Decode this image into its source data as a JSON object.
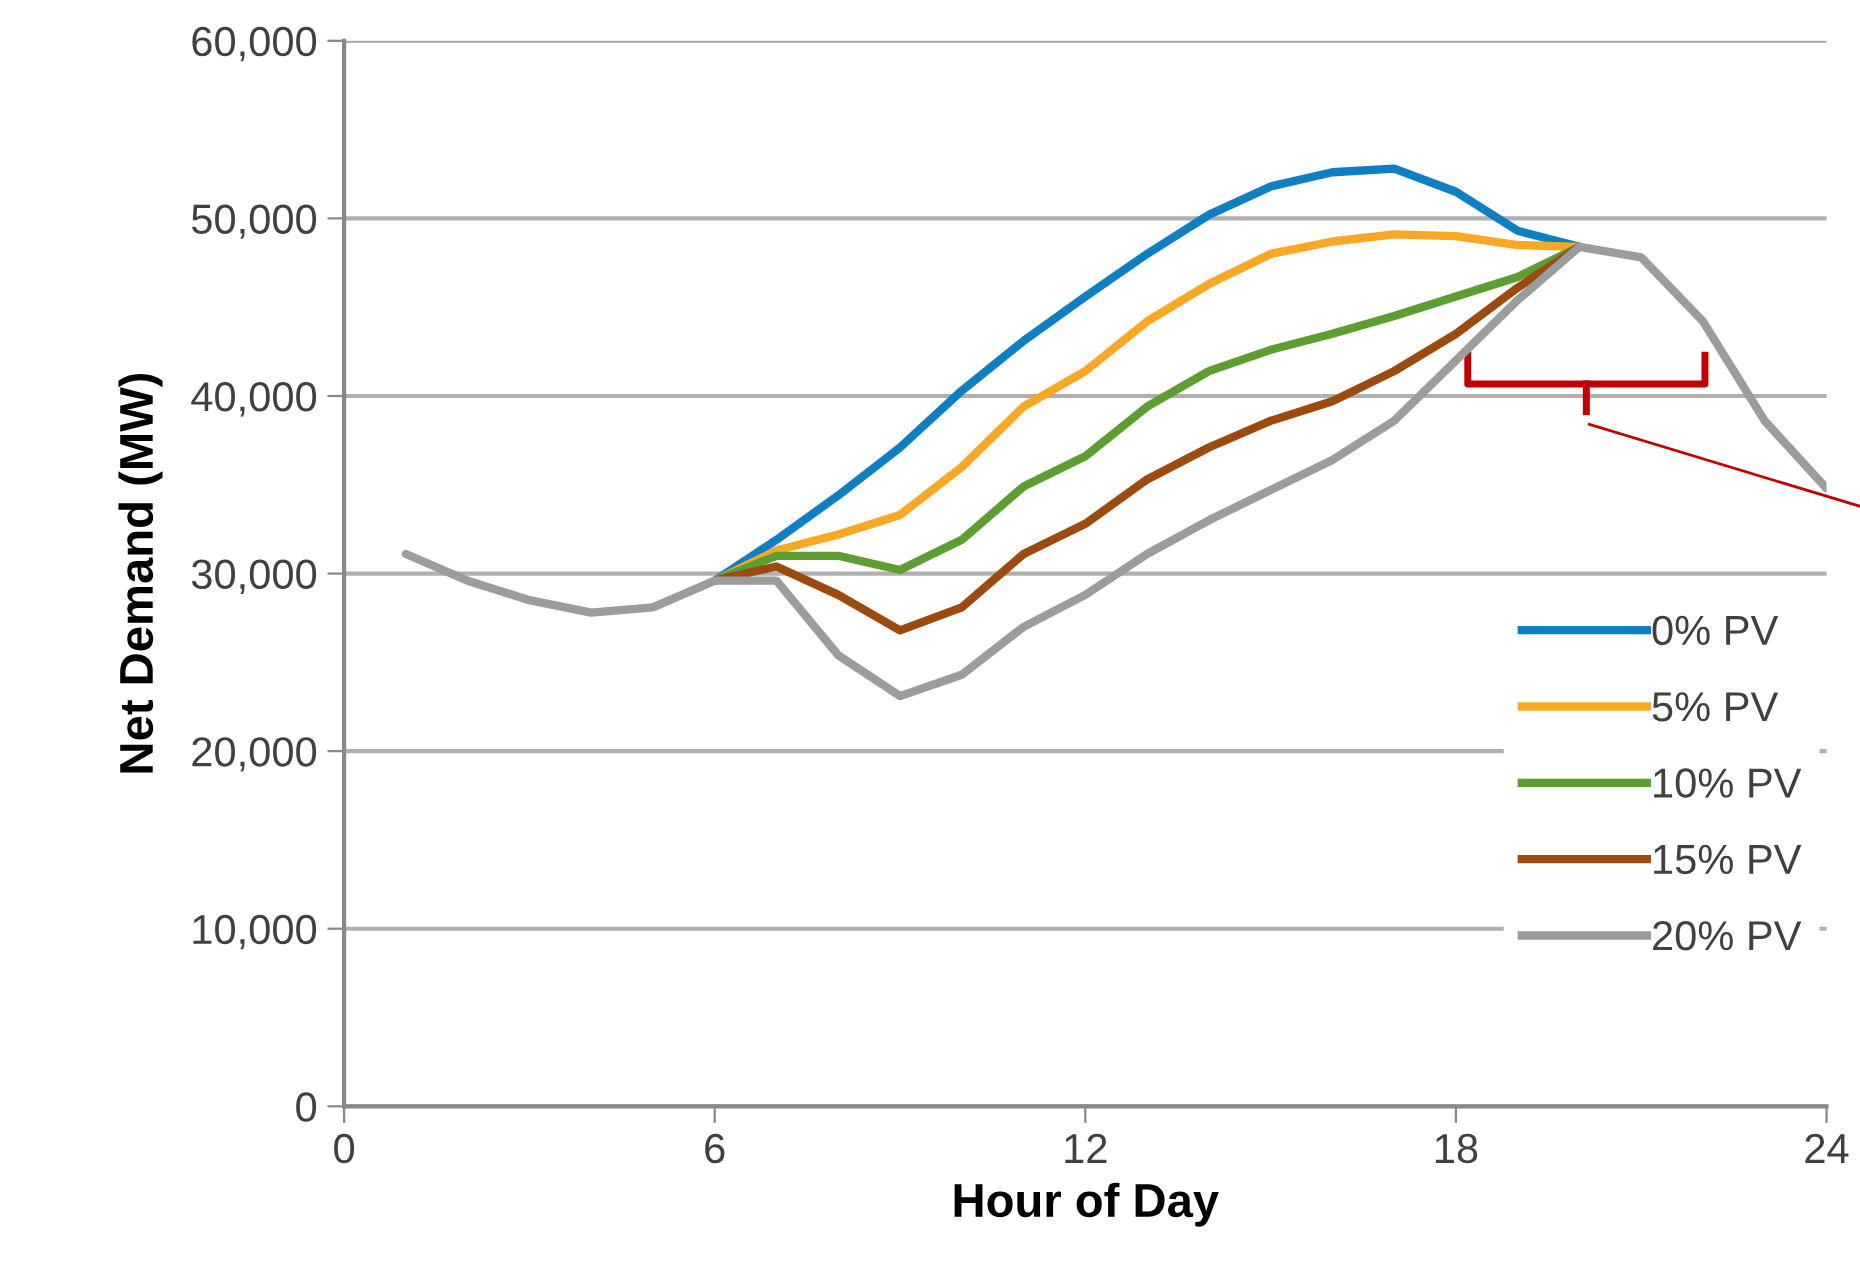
{
  "chart_data": {
    "type": "line",
    "xlabel": "Hour of Day",
    "ylabel": "Net Demand (MW)",
    "x": [
      1,
      2,
      3,
      4,
      5,
      6,
      7,
      8,
      9,
      10,
      11,
      12,
      13,
      14,
      15,
      16,
      17,
      18,
      19,
      20,
      21,
      22,
      23,
      24
    ],
    "series": [
      {
        "name": "0% PV",
        "color": "#0f7fc4",
        "values": [
          null,
          null,
          null,
          null,
          null,
          29600,
          31900,
          34400,
          37100,
          40300,
          43100,
          45600,
          48000,
          50200,
          51800,
          52600,
          52800,
          51500,
          49300,
          48400,
          null,
          null,
          null,
          null
        ]
      },
      {
        "name": "5% PV",
        "color": "#f9a825",
        "values": [
          null,
          null,
          null,
          null,
          null,
          29600,
          31300,
          32200,
          33300,
          36000,
          39400,
          41400,
          44200,
          46300,
          48000,
          48700,
          49100,
          49000,
          48500,
          48400,
          null,
          null,
          null,
          null
        ]
      },
      {
        "name": "10% PV",
        "color": "#5c9e31",
        "values": [
          null,
          null,
          null,
          null,
          null,
          29600,
          31000,
          31000,
          30200,
          31900,
          34900,
          36600,
          39400,
          41400,
          42600,
          43500,
          44500,
          45600,
          46700,
          48400,
          null,
          null,
          null,
          null
        ]
      },
      {
        "name": "15% PV",
        "color": "#9c4a0e",
        "values": [
          null,
          null,
          null,
          null,
          null,
          29600,
          30400,
          28800,
          26800,
          28100,
          31100,
          32800,
          35300,
          37100,
          38600,
          39700,
          41400,
          43500,
          46100,
          48400,
          null,
          null,
          null,
          null
        ]
      },
      {
        "name": "20% PV",
        "color": "#9c9c9c",
        "values": [
          31100,
          29600,
          28500,
          27800,
          28100,
          29600,
          29600,
          25400,
          23100,
          24300,
          27000,
          28800,
          31100,
          33000,
          34700,
          36400,
          38600,
          42000,
          45400,
          48400,
          47800,
          44200,
          38600,
          34800
        ]
      }
    ],
    "xlim": [
      0,
      24
    ],
    "xticks": [
      0,
      6,
      12,
      18,
      24
    ],
    "ylim": [
      0,
      60000
    ],
    "yticks": [
      {
        "value": 0,
        "label": "0"
      },
      {
        "value": 10000,
        "label": "10,000"
      },
      {
        "value": 20000,
        "label": "20,000"
      },
      {
        "value": 30000,
        "label": "30,000"
      },
      {
        "value": 40000,
        "label": "40,000"
      },
      {
        "value": 50000,
        "label": "50,000"
      },
      {
        "value": 60000,
        "label": "60,000"
      }
    ],
    "grid": "y",
    "legend": "right",
    "marker": "none",
    "line_style": "solid"
  }
}
